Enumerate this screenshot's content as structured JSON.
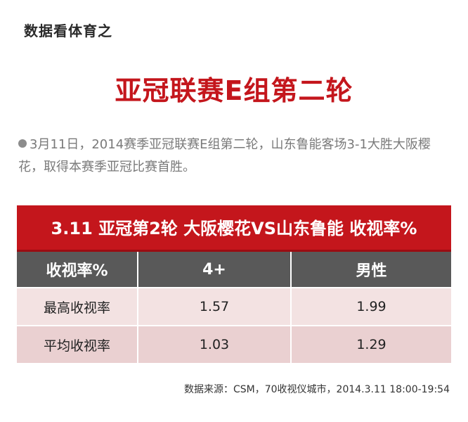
{
  "brand": "数据看体育之",
  "headline": "亚冠联赛E组第二轮",
  "summary": {
    "bullet": "●",
    "text": "3月11日，2014赛季亚冠联赛E组第二轮，山东鲁能客场3-1大胜大阪樱花，取得本赛季亚冠比赛首胜。"
  },
  "table": {
    "title": "3.11 亚冠第2轮 大阪樱花VS山东鲁能 收视率%",
    "headers": [
      "收视率%",
      "4+",
      "男性"
    ],
    "rows": [
      {
        "label": "最高收视率",
        "values": [
          "1.57",
          "1.99"
        ]
      },
      {
        "label": "平均收视率",
        "values": [
          "1.03",
          "1.29"
        ]
      }
    ]
  },
  "source": "数据来源：CSM，70收视仪城市，2014.3.11  18:00-19:54",
  "colors": {
    "accent_red": "#c4161c",
    "header_gray": "#595959",
    "row_light": "#f3e2e2",
    "row_dark": "#ead0d1"
  }
}
